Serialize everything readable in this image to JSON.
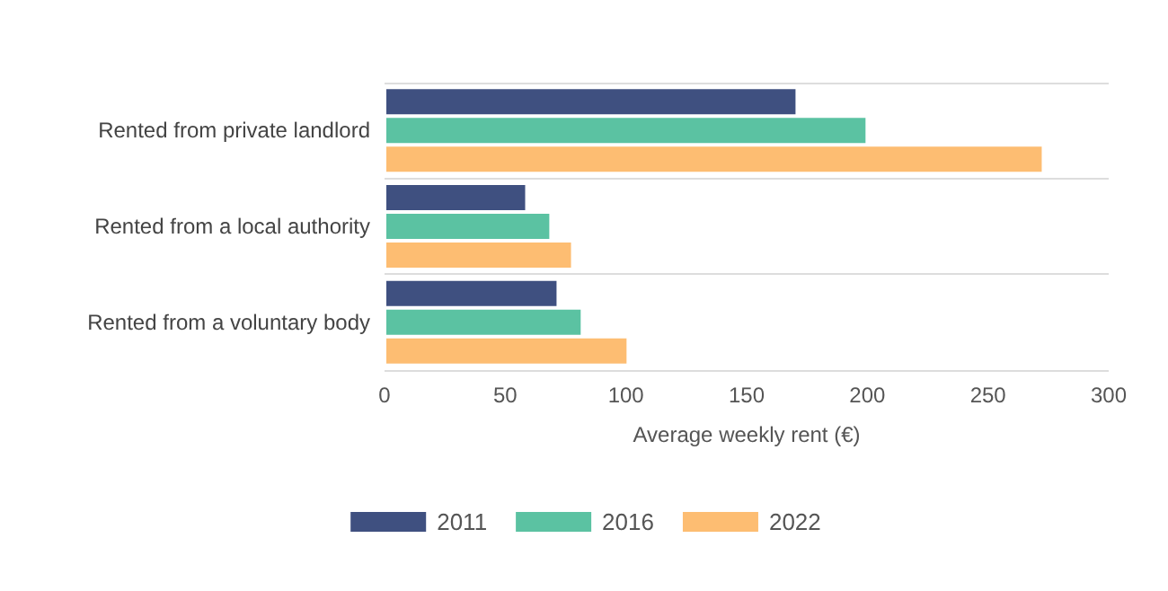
{
  "chart_data": {
    "type": "bar",
    "orientation": "horizontal",
    "xlabel": "Average weekly rent (€)",
    "categories": [
      "Rented from private landlord",
      "Rented from a local authority",
      "Rented from a voluntary body"
    ],
    "series": [
      {
        "name": "2011",
        "color": "#3f5080",
        "values": [
          171,
          59,
          72
        ]
      },
      {
        "name": "2016",
        "color": "#5bc2a2",
        "values": [
          200,
          69,
          82
        ]
      },
      {
        "name": "2022",
        "color": "#fdbd72",
        "values": [
          273,
          78,
          101
        ]
      }
    ],
    "xlim": [
      0,
      300
    ],
    "xticks": [
      0,
      50,
      100,
      150,
      200,
      250,
      300
    ],
    "grid": "y",
    "legend": "bottom"
  }
}
